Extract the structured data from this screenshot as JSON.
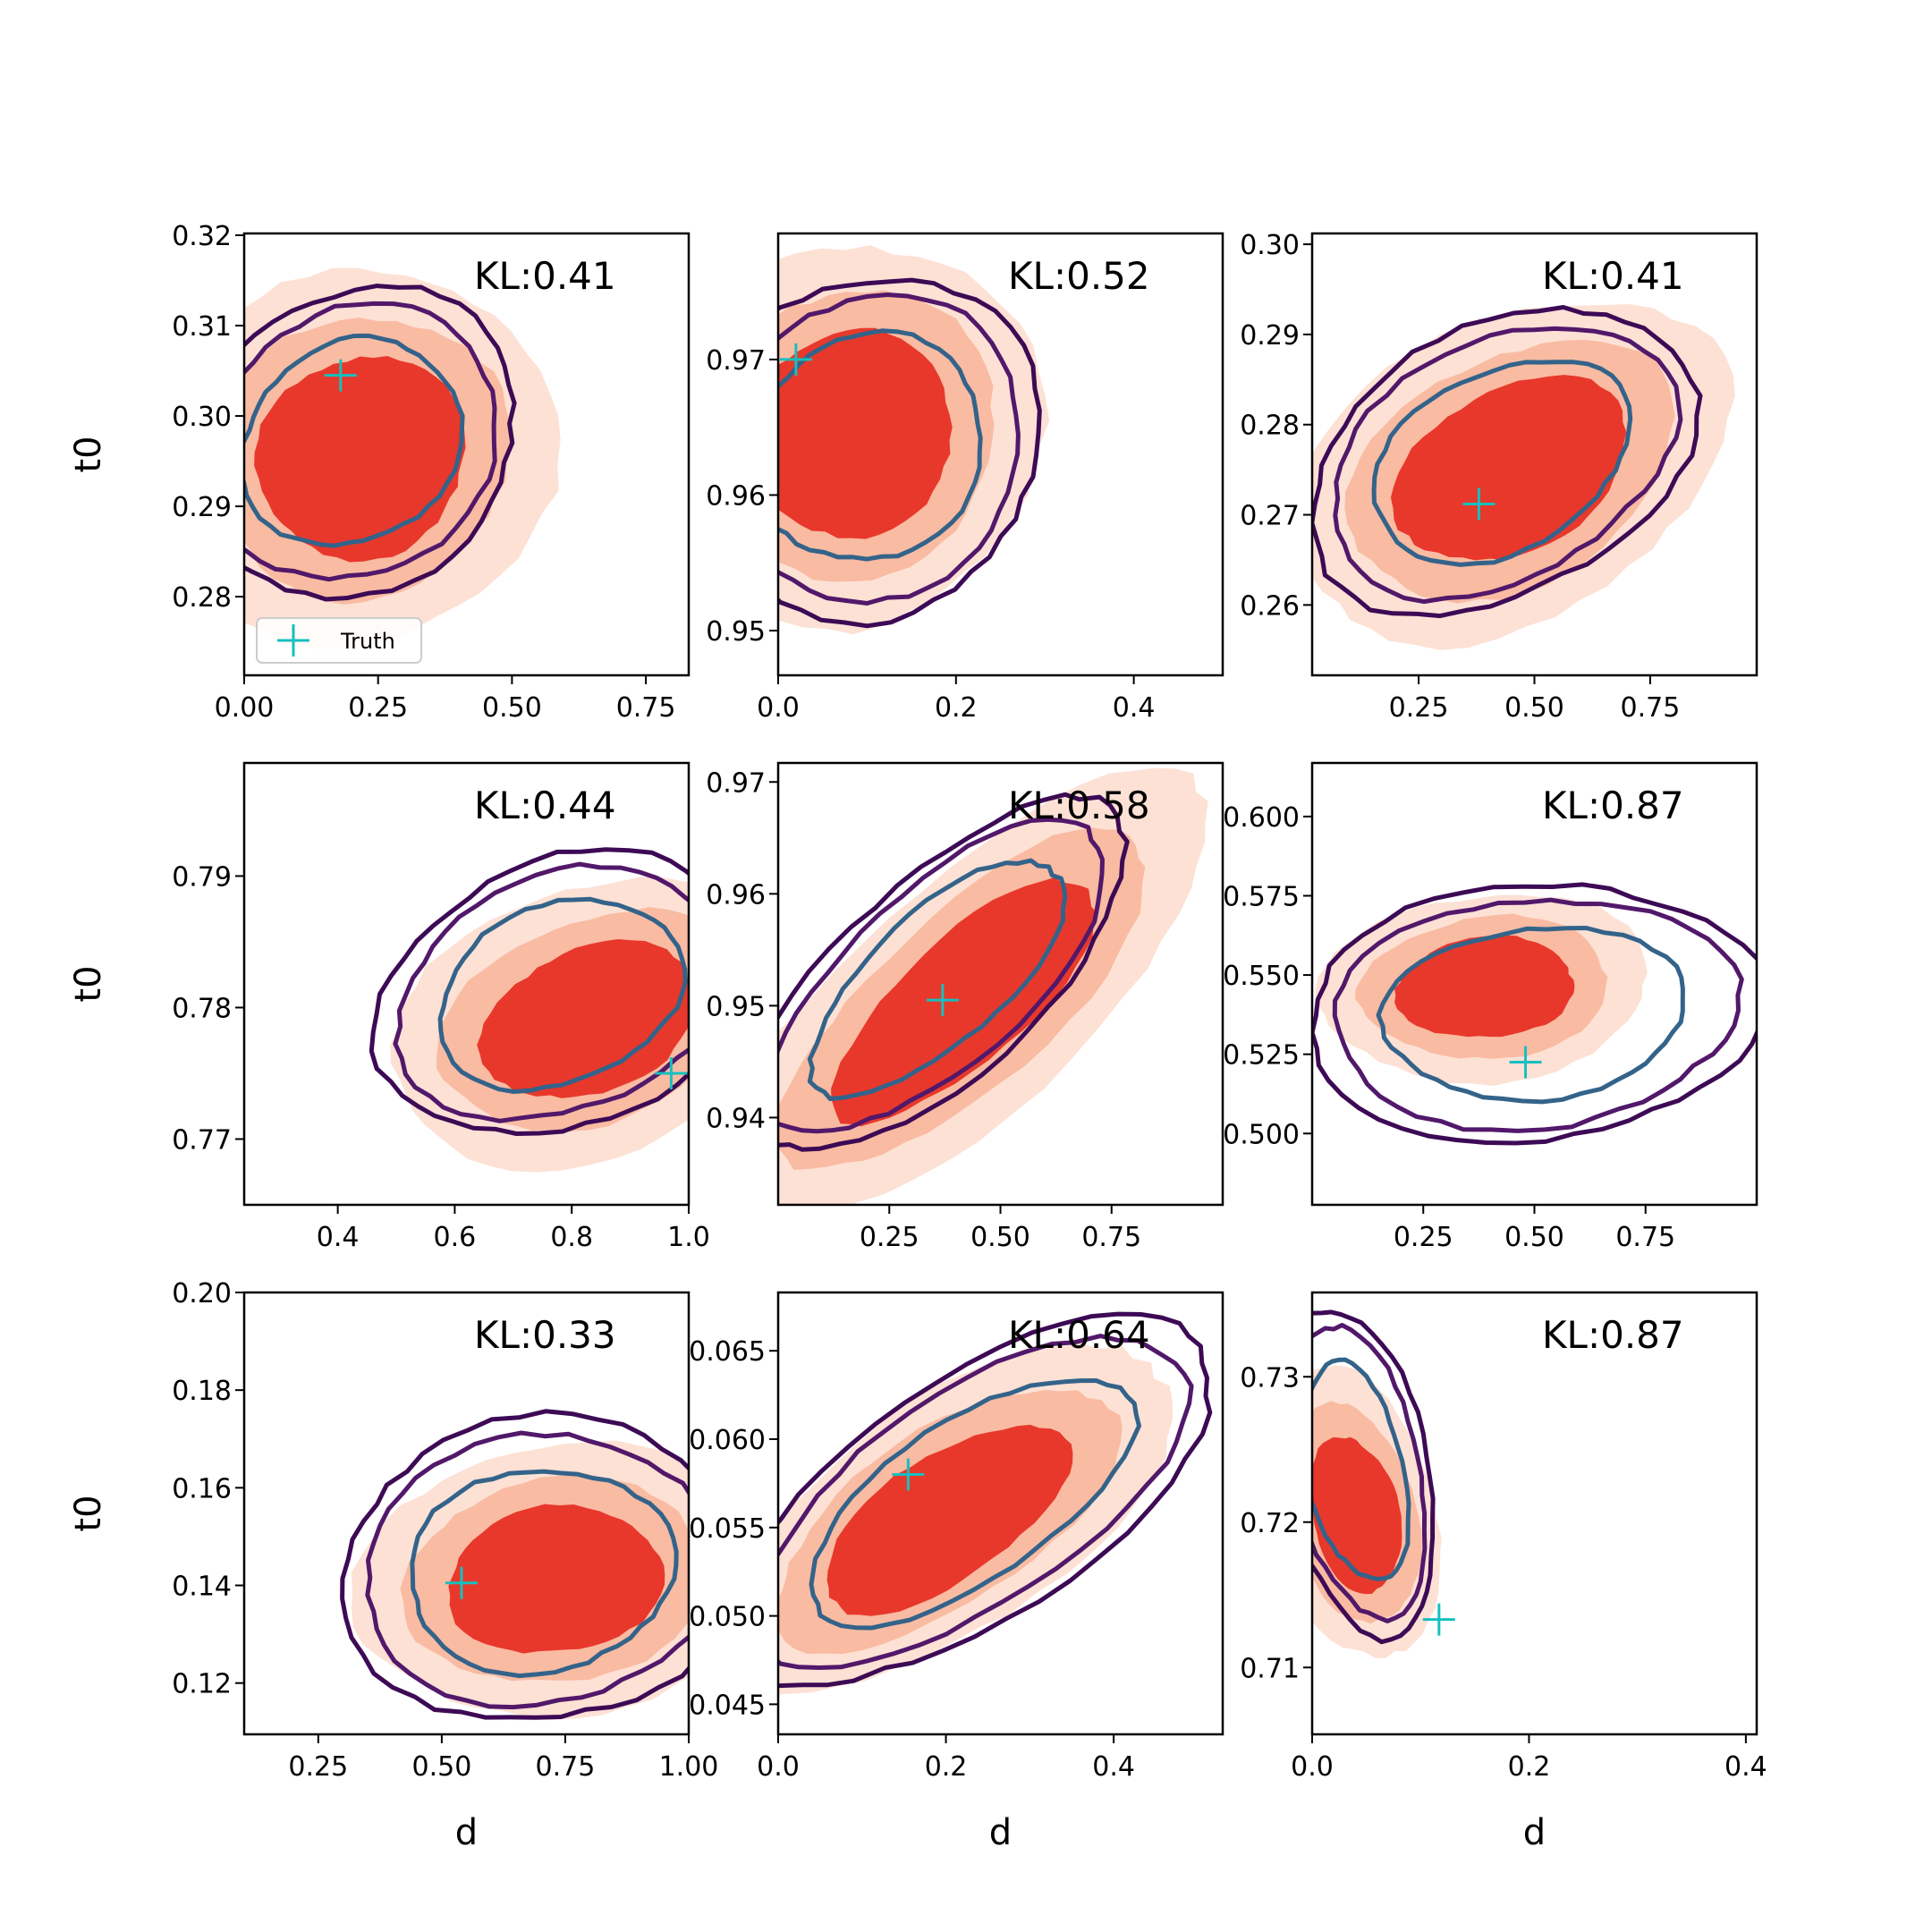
{
  "chart_data": {
    "type": "contour",
    "colors": {
      "filled_light": "#fde1d5",
      "filled_mid": "#f9bba2",
      "filled_dark": "#e8382b",
      "contour_outer": "#3d0a55",
      "contour_mid": "#52186a",
      "contour_inner": "#34638a",
      "truth": "#17bfbf"
    },
    "legend": {
      "label": "Truth",
      "placement": "lower-left of first panel"
    },
    "panels": [
      {
        "kl": "KL:0.41",
        "xlim": [
          0.0,
          0.83
        ],
        "ylim": [
          0.2713,
          0.3202
        ],
        "xticks": [
          0.0,
          0.25,
          0.5,
          0.75
        ],
        "xtick_labels": [
          "0.00",
          "0.25",
          "0.50",
          "0.75"
        ],
        "yticks": [
          0.28,
          0.29,
          0.3,
          0.31,
          0.32
        ],
        "ytick_labels": [
          "0.28",
          "0.29",
          "0.30",
          "0.31",
          "0.32"
        ],
        "ylabel": "t0",
        "xlabel": "",
        "truth": [
          0.18,
          0.3045
        ],
        "filled_center": [
          0.22,
          0.2955
        ],
        "filled_halfwidths": [
          0.2,
          0.011
        ],
        "rotation": -33,
        "contour_center": [
          0.2,
          0.297
        ],
        "contour_halfwidths": [
          0.24,
          0.012
        ],
        "has_legend": true
      },
      {
        "kl": "KL:0.52",
        "xlim": [
          0.0,
          0.5
        ],
        "ylim": [
          0.9467,
          0.9793
        ],
        "xticks": [
          0.0,
          0.2,
          0.4
        ],
        "xtick_labels": [
          "0.0",
          "0.2",
          "0.4"
        ],
        "yticks": [
          0.95,
          0.96,
          0.97
        ],
        "ytick_labels": [
          "0.95",
          "0.96",
          "0.97"
        ],
        "ylabel": "",
        "xlabel": "",
        "truth": [
          0.02,
          0.97
        ],
        "filled_center": [
          0.08,
          0.9645
        ],
        "filled_halfwidths": [
          0.12,
          0.0075
        ],
        "rotation": -40,
        "contour_center": [
          0.1,
          0.9635
        ],
        "contour_halfwidths": [
          0.15,
          0.009
        ],
        "has_legend": false
      },
      {
        "kl": "KL:0.41",
        "xlim": [
          0.02,
          0.98
        ],
        "ylim": [
          0.2522,
          0.3012
        ],
        "xticks": [
          0.25,
          0.5,
          0.75
        ],
        "xtick_labels": [
          "0.25",
          "0.50",
          "0.75"
        ],
        "yticks": [
          0.26,
          0.27,
          0.28,
          0.29,
          0.3
        ],
        "ytick_labels": [
          "0.26",
          "0.27",
          "0.28",
          "0.29",
          "0.30"
        ],
        "ylabel": "",
        "xlabel": "",
        "truth": [
          0.38,
          0.2712
        ],
        "filled_center": [
          0.45,
          0.275
        ],
        "filled_halfwidths": [
          0.27,
          0.009
        ],
        "rotation": -28,
        "contour_center": [
          0.43,
          0.276
        ],
        "contour_halfwidths": [
          0.33,
          0.011
        ],
        "has_legend": false
      },
      {
        "kl": "KL:0.44",
        "xlim": [
          0.24,
          1.0
        ],
        "ylim": [
          0.765,
          0.7986
        ],
        "xticks": [
          0.4,
          0.6,
          0.8,
          1.0
        ],
        "xtick_labels": [
          "0.4",
          "0.6",
          "0.8",
          "1.0"
        ],
        "yticks": [
          0.77,
          0.78,
          0.79
        ],
        "ytick_labels": [
          "0.77",
          "0.78",
          "0.79"
        ],
        "ylabel": "t0",
        "xlabel": "",
        "truth": [
          0.97,
          0.775
        ],
        "filled_center": [
          0.83,
          0.779
        ],
        "filled_halfwidths": [
          0.19,
          0.0055
        ],
        "rotation": -22,
        "contour_center": [
          0.78,
          0.781
        ],
        "contour_halfwidths": [
          0.24,
          0.0075
        ],
        "has_legend": false
      },
      {
        "kl": "KL:0.58",
        "xlim": [
          0.0,
          1.0
        ],
        "ylim": [
          0.9322,
          0.9717
        ],
        "xticks": [
          0.25,
          0.5,
          0.75
        ],
        "xtick_labels": [
          "0.25",
          "0.50",
          "0.75"
        ],
        "yticks": [
          0.94,
          0.95,
          0.96,
          0.97
        ],
        "ytick_labels": [
          "0.94",
          "0.95",
          "0.96",
          "0.97"
        ],
        "ylabel": "",
        "xlabel": "",
        "truth": [
          0.37,
          0.9505
        ],
        "filled_center": [
          0.42,
          0.9505
        ],
        "filled_halfwidths": [
          0.38,
          0.0055
        ],
        "rotation": -42,
        "contour_center": [
          0.36,
          0.9525
        ],
        "contour_halfwidths": [
          0.4,
          0.0065
        ],
        "has_legend": false
      },
      {
        "kl": "KL:0.87",
        "xlim": [
          0.0,
          1.0
        ],
        "ylim": [
          0.4775,
          0.6169
        ],
        "xticks": [
          0.25,
          0.5,
          0.75
        ],
        "xtick_labels": [
          "0.25",
          "0.50",
          "0.75"
        ],
        "yticks": [
          0.5,
          0.525,
          0.55,
          0.575,
          0.6
        ],
        "ytick_labels": [
          "0.500",
          "0.525",
          "0.550",
          "0.575",
          "0.600"
        ],
        "ylabel": "",
        "xlabel": "",
        "truth": [
          0.48,
          0.5225
        ],
        "filled_center": [
          0.39,
          0.546
        ],
        "filled_halfwidths": [
          0.2,
          0.016
        ],
        "rotation": -5,
        "contour_center": [
          0.5,
          0.538
        ],
        "contour_halfwidths": [
          0.38,
          0.03
        ],
        "has_legend": false
      },
      {
        "kl": "KL:0.33",
        "xlim": [
          0.1,
          1.0
        ],
        "ylim": [
          0.1095,
          0.2
        ],
        "xticks": [
          0.25,
          0.5,
          0.75,
          1.0
        ],
        "xtick_labels": [
          "0.25",
          "0.50",
          "0.75",
          "1.00"
        ],
        "yticks": [
          0.12,
          0.14,
          0.16,
          0.18,
          0.2
        ],
        "ytick_labels": [
          "0.12",
          "0.14",
          "0.16",
          "0.18",
          "0.20"
        ],
        "ylabel": "t0",
        "xlabel": "d",
        "truth": [
          0.54,
          0.1405
        ],
        "filled_center": [
          0.73,
          0.141
        ],
        "filled_halfwidths": [
          0.22,
          0.015
        ],
        "rotation": -8,
        "contour_center": [
          0.7,
          0.143
        ],
        "contour_halfwidths": [
          0.3,
          0.023
        ],
        "has_legend": false
      },
      {
        "kl": "KL:0.64",
        "xlim": [
          0.0,
          0.53
        ],
        "ylim": [
          0.0433,
          0.0683
        ],
        "xticks": [
          0.0,
          0.2,
          0.4
        ],
        "xtick_labels": [
          "0.0",
          "0.2",
          "0.4"
        ],
        "yticks": [
          0.045,
          0.05,
          0.055,
          0.06,
          0.065
        ],
        "ytick_labels": [
          "0.045",
          "0.050",
          "0.055",
          "0.060",
          "0.065"
        ],
        "ylabel": "",
        "xlabel": "d",
        "truth": [
          0.155,
          0.058
        ],
        "filled_center": [
          0.2,
          0.0555
        ],
        "filled_halfwidths": [
          0.17,
          0.0035
        ],
        "rotation": -34,
        "contour_center": [
          0.23,
          0.0565
        ],
        "contour_halfwidths": [
          0.25,
          0.005
        ],
        "has_legend": false
      },
      {
        "kl": "KL:0.87",
        "xlim": [
          0.0,
          0.41
        ],
        "ylim": [
          0.7054,
          0.7358
        ],
        "xticks": [
          0.0,
          0.2,
          0.4
        ],
        "xtick_labels": [
          "0.0",
          "0.2",
          "0.4"
        ],
        "yticks": [
          0.71,
          0.72,
          0.73
        ],
        "ytick_labels": [
          "0.71",
          "0.72",
          "0.73"
        ],
        "ylabel": "",
        "xlabel": "d",
        "truth": [
          0.117,
          0.7133
        ],
        "filled_center": [
          0.04,
          0.7205
        ],
        "filled_halfwidths": [
          0.04,
          0.0055
        ],
        "rotation": -12,
        "contour_center": [
          0.04,
          0.7235
        ],
        "contour_halfwidths": [
          0.05,
          0.0085
        ],
        "has_legend": false
      }
    ]
  }
}
